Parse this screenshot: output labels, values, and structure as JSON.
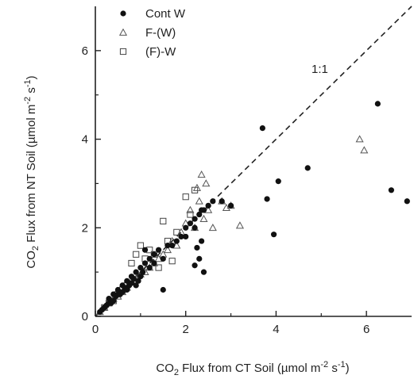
{
  "chart_data": {
    "type": "scatter",
    "xlabel_parts": {
      "pre": "CO",
      "sub1": "2",
      "mid": " Flux from CT Soil (µmol m",
      "sup": "-2",
      "post": " s",
      "sup2": "-1",
      "end": ")"
    },
    "ylabel_parts": {
      "pre": "CO",
      "sub1": "2",
      "mid": " Flux from NT Soil (µmol m",
      "sup": "-2",
      "post": " s",
      "sup2": "-1",
      "end": ")"
    },
    "xlim": [
      0,
      7
    ],
    "ylim": [
      0,
      7
    ],
    "xticks": [
      0,
      2,
      4,
      6
    ],
    "yticks": [
      0,
      2,
      4,
      6
    ],
    "reference_line": {
      "label": "1:1",
      "slope": 1
    },
    "legend": {
      "placement": "top-left"
    },
    "series": [
      {
        "name": "Cont W",
        "marker": "filled-circle",
        "x": [
          0.1,
          0.15,
          0.2,
          0.25,
          0.3,
          0.3,
          0.35,
          0.4,
          0.4,
          0.45,
          0.5,
          0.5,
          0.55,
          0.6,
          0.6,
          0.65,
          0.7,
          0.7,
          0.75,
          0.8,
          0.8,
          0.85,
          0.9,
          0.9,
          0.95,
          1.0,
          1.0,
          1.05,
          1.1,
          1.1,
          1.2,
          1.2,
          1.3,
          1.3,
          1.4,
          1.5,
          1.5,
          1.6,
          1.7,
          1.8,
          1.9,
          2.0,
          2.0,
          2.1,
          2.2,
          2.2,
          2.3,
          2.35,
          2.4,
          2.5,
          2.6,
          2.2,
          2.3,
          2.4,
          2.25,
          2.35,
          2.8,
          3.0,
          3.7,
          3.8,
          3.95,
          4.05,
          4.7,
          6.25,
          6.55,
          6.9
        ],
        "y": [
          0.1,
          0.15,
          0.2,
          0.25,
          0.3,
          0.4,
          0.3,
          0.5,
          0.35,
          0.45,
          0.5,
          0.6,
          0.5,
          0.7,
          0.55,
          0.65,
          0.6,
          0.8,
          0.7,
          0.9,
          0.75,
          0.85,
          0.7,
          1.0,
          0.8,
          1.1,
          0.9,
          1.0,
          1.5,
          1.2,
          1.3,
          1.1,
          1.4,
          1.2,
          1.5,
          0.6,
          1.3,
          1.6,
          1.6,
          1.7,
          1.8,
          2.0,
          1.8,
          2.1,
          2.2,
          2.0,
          2.3,
          2.4,
          2.4,
          2.5,
          2.6,
          1.15,
          1.3,
          1.0,
          1.55,
          1.7,
          2.6,
          2.5,
          4.25,
          2.65,
          1.85,
          3.05,
          3.35,
          4.8,
          2.85,
          2.6
        ]
      },
      {
        "name": "F-(W)",
        "marker": "open-triangle",
        "x": [
          0.1,
          0.2,
          0.3,
          0.4,
          0.5,
          0.6,
          0.7,
          0.8,
          0.9,
          1.0,
          1.1,
          1.2,
          1.3,
          1.4,
          1.5,
          1.6,
          1.7,
          1.8,
          1.9,
          2.0,
          2.1,
          2.2,
          2.25,
          2.3,
          2.35,
          2.4,
          2.45,
          2.5,
          2.6,
          2.8,
          2.9,
          3.0,
          3.2,
          5.85,
          5.95
        ],
        "y": [
          0.1,
          0.2,
          0.3,
          0.4,
          0.45,
          0.55,
          0.65,
          0.8,
          0.85,
          0.95,
          1.0,
          1.1,
          1.2,
          1.3,
          1.4,
          1.5,
          1.7,
          1.6,
          1.9,
          2.1,
          2.4,
          2.0,
          2.9,
          2.6,
          3.2,
          2.2,
          3.0,
          2.4,
          2.0,
          2.6,
          2.45,
          2.5,
          2.05,
          4.0,
          3.75
        ]
      },
      {
        "name": "(F)-W",
        "marker": "open-square",
        "x": [
          0.2,
          0.3,
          0.4,
          0.5,
          0.6,
          0.7,
          0.8,
          0.9,
          1.0,
          1.1,
          1.2,
          1.3,
          1.4,
          1.5,
          1.6,
          1.7,
          1.8,
          2.0,
          2.1,
          2.2
        ],
        "y": [
          0.2,
          0.3,
          0.35,
          0.5,
          0.6,
          0.7,
          1.2,
          1.4,
          1.6,
          1.3,
          1.5,
          1.4,
          1.1,
          2.15,
          1.7,
          1.25,
          1.9,
          2.7,
          2.3,
          2.85
        ]
      }
    ]
  }
}
